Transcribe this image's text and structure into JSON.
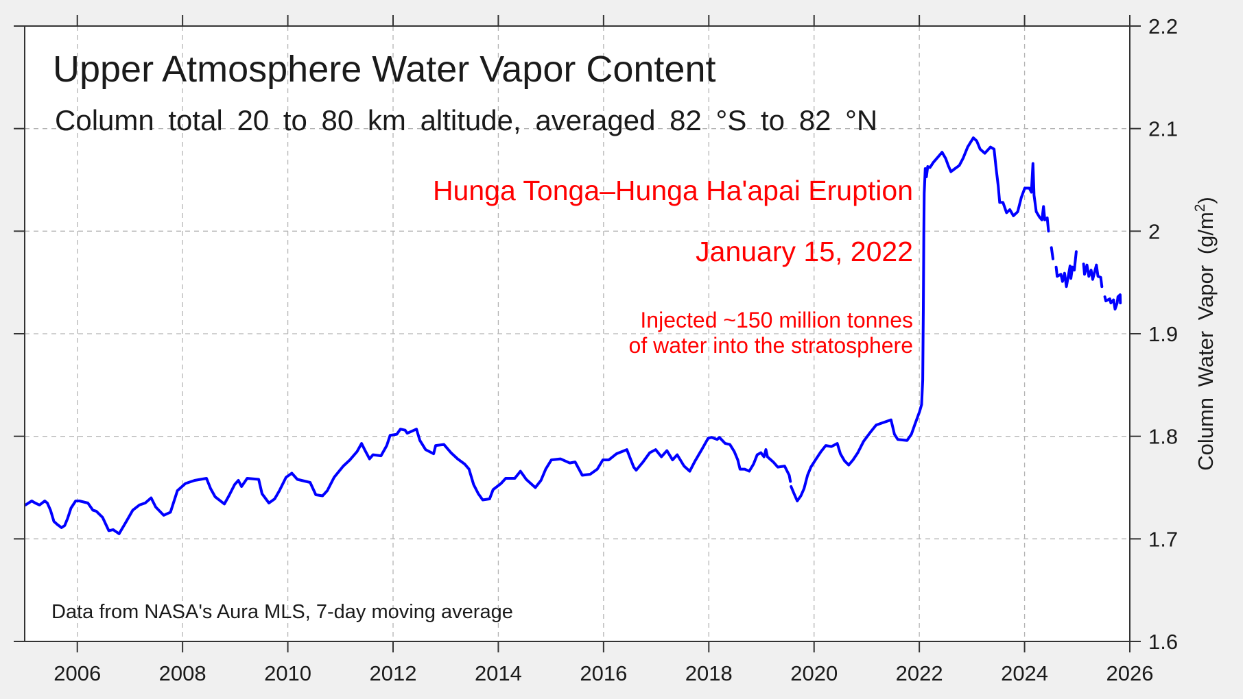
{
  "chart_data": {
    "type": "line",
    "title": "Upper Atmosphere Water Vapor Content",
    "subtitle": "Column total 20 to 80 km altitude, averaged 82 °S to 82 °N",
    "xlabel": "",
    "ylabel": "Column Water Vapor  (g/m",
    "ylabel_superscript": "2",
    "ylabel_close": ")",
    "xlim": [
      2005,
      2026
    ],
    "ylim": [
      1.6,
      2.2
    ],
    "x_ticks": [
      2006,
      2008,
      2010,
      2012,
      2014,
      2016,
      2018,
      2020,
      2022,
      2024,
      2026
    ],
    "x_tick_labels": [
      "2006",
      "2008",
      "2010",
      "2012",
      "2014",
      "2016",
      "2018",
      "2020",
      "2022",
      "2024",
      "2026"
    ],
    "y_ticks": [
      1.6,
      1.7,
      1.8,
      1.9,
      2.0,
      2.1,
      2.2
    ],
    "y_tick_labels": [
      "1.6",
      "1.7",
      "1.8",
      "1.9",
      "2",
      "2.1",
      "2.2"
    ],
    "y_axis_side": "right",
    "grid": true,
    "series_color": "#0000ff",
    "annotation_color": "#ff0000",
    "annotations": {
      "event": "Hunga Tonga–Hunga Ha'apai Eruption",
      "date": "January 15, 2022",
      "detail_line1": "Injected ~150 million tonnes",
      "detail_line2": "of water into the stratosphere"
    },
    "footnote": "Data from NASA's Aura MLS, 7-day moving average",
    "series": [
      {
        "name": "Column Water Vapor (7-day moving average)",
        "segments": [
          [
            [
              2005.013,
              1.733
            ],
            [
              2005.134,
              1.737
            ],
            [
              2005.2,
              1.735
            ],
            [
              2005.282,
              1.733
            ],
            [
              2005.382,
              1.737
            ],
            [
              2005.43,
              1.735
            ],
            [
              2005.49,
              1.728
            ],
            [
              2005.555,
              1.717
            ],
            [
              2005.62,
              1.714
            ],
            [
              2005.699,
              1.711
            ],
            [
              2005.76,
              1.713
            ],
            [
              2005.816,
              1.72
            ],
            [
              2005.88,
              1.73
            ],
            [
              2005.969,
              1.737
            ],
            [
              2006.04,
              1.737
            ],
            [
              2006.12,
              1.736
            ],
            [
              2006.2,
              1.735
            ],
            [
              2006.295,
              1.728
            ],
            [
              2006.36,
              1.727
            ],
            [
              2006.48,
              1.721
            ],
            [
              2006.598,
              1.708
            ],
            [
              2006.68,
              1.709
            ],
            [
              2006.794,
              1.705
            ],
            [
              2006.92,
              1.716
            ],
            [
              2007.055,
              1.728
            ],
            [
              2007.18,
              1.733
            ],
            [
              2007.29,
              1.735
            ],
            [
              2007.403,
              1.74
            ],
            [
              2007.49,
              1.731
            ],
            [
              2007.641,
              1.723
            ],
            [
              2007.77,
              1.726
            ],
            [
              2007.902,
              1.747
            ],
            [
              2008.055,
              1.754
            ],
            [
              2008.23,
              1.757
            ],
            [
              2008.455,
              1.759
            ],
            [
              2008.533,
              1.749
            ],
            [
              2008.62,
              1.741
            ],
            [
              2008.794,
              1.734
            ],
            [
              2008.88,
              1.742
            ],
            [
              2008.99,
              1.753
            ],
            [
              2009.06,
              1.757
            ],
            [
              2009.12,
              1.751
            ],
            [
              2009.228,
              1.759
            ],
            [
              2009.446,
              1.758
            ],
            [
              2009.51,
              1.744
            ],
            [
              2009.641,
              1.735
            ],
            [
              2009.75,
              1.739
            ],
            [
              2009.84,
              1.747
            ],
            [
              2009.967,
              1.76
            ],
            [
              2010.076,
              1.764
            ],
            [
              2010.18,
              1.758
            ],
            [
              2010.424,
              1.755
            ],
            [
              2010.532,
              1.743
            ],
            [
              2010.66,
              1.742
            ],
            [
              2010.75,
              1.747
            ],
            [
              2010.88,
              1.76
            ],
            [
              2011.053,
              1.771
            ],
            [
              2011.18,
              1.777
            ],
            [
              2011.314,
              1.785
            ],
            [
              2011.402,
              1.793
            ],
            [
              2011.47,
              1.786
            ],
            [
              2011.553,
              1.778
            ],
            [
              2011.62,
              1.782
            ],
            [
              2011.77,
              1.781
            ],
            [
              2011.88,
              1.791
            ],
            [
              2011.944,
              1.801
            ],
            [
              2012.07,
              1.802
            ],
            [
              2012.14,
              1.807
            ],
            [
              2012.23,
              1.806
            ],
            [
              2012.27,
              1.803
            ],
            [
              2012.445,
              1.807
            ],
            [
              2012.51,
              1.796
            ],
            [
              2012.618,
              1.787
            ],
            [
              2012.77,
              1.783
            ],
            [
              2012.81,
              1.791
            ],
            [
              2012.966,
              1.792
            ],
            [
              2013.1,
              1.784
            ],
            [
              2013.227,
              1.778
            ],
            [
              2013.36,
              1.773
            ],
            [
              2013.443,
              1.768
            ],
            [
              2013.531,
              1.753
            ],
            [
              2013.62,
              1.744
            ],
            [
              2013.704,
              1.738
            ],
            [
              2013.834,
              1.739
            ],
            [
              2013.9,
              1.748
            ],
            [
              2014.052,
              1.754
            ],
            [
              2014.14,
              1.759
            ],
            [
              2014.313,
              1.759
            ],
            [
              2014.421,
              1.766
            ],
            [
              2014.53,
              1.758
            ],
            [
              2014.704,
              1.75
            ],
            [
              2014.81,
              1.757
            ],
            [
              2014.9,
              1.768
            ],
            [
              2015.008,
              1.777
            ],
            [
              2015.18,
              1.778
            ],
            [
              2015.356,
              1.774
            ],
            [
              2015.46,
              1.775
            ],
            [
              2015.595,
              1.762
            ],
            [
              2015.747,
              1.763
            ],
            [
              2015.88,
              1.768
            ],
            [
              2015.986,
              1.777
            ],
            [
              2016.1,
              1.777
            ],
            [
              2016.247,
              1.783
            ],
            [
              2016.442,
              1.787
            ],
            [
              2016.573,
              1.77
            ],
            [
              2016.62,
              1.767
            ],
            [
              2016.75,
              1.775
            ],
            [
              2016.878,
              1.784
            ],
            [
              2016.99,
              1.787
            ],
            [
              2017.1,
              1.78
            ],
            [
              2017.204,
              1.786
            ],
            [
              2017.31,
              1.777
            ],
            [
              2017.399,
              1.782
            ],
            [
              2017.53,
              1.771
            ],
            [
              2017.638,
              1.766
            ],
            [
              2017.74,
              1.776
            ],
            [
              2017.876,
              1.788
            ],
            [
              2017.986,
              1.798
            ],
            [
              2018.05,
              1.799
            ],
            [
              2018.16,
              1.797
            ],
            [
              2018.2,
              1.799
            ],
            [
              2018.312,
              1.793
            ],
            [
              2018.4,
              1.792
            ],
            [
              2018.485,
              1.785
            ],
            [
              2018.55,
              1.777
            ],
            [
              2018.593,
              1.768
            ],
            [
              2018.68,
              1.768
            ],
            [
              2018.768,
              1.766
            ],
            [
              2018.85,
              1.773
            ],
            [
              2018.919,
              1.782
            ],
            [
              2018.99,
              1.784
            ],
            [
              2019.05,
              1.78
            ],
            [
              2019.085,
              1.787
            ],
            [
              2019.115,
              1.78
            ],
            [
              2019.224,
              1.775
            ],
            [
              2019.31,
              1.77
            ],
            [
              2019.441,
              1.771
            ],
            [
              2019.528,
              1.762
            ],
            [
              2019.55,
              1.756
            ]
          ],
          [
            [
              2019.563,
              1.751
            ],
            [
              2019.62,
              1.744
            ],
            [
              2019.681,
              1.737
            ],
            [
              2019.75,
              1.742
            ],
            [
              2019.81,
              1.749
            ],
            [
              2019.876,
              1.762
            ],
            [
              2019.94,
              1.77
            ],
            [
              2020.027,
              1.777
            ],
            [
              2020.13,
              1.785
            ],
            [
              2020.223,
              1.791
            ],
            [
              2020.33,
              1.79
            ],
            [
              2020.441,
              1.793
            ],
            [
              2020.5,
              1.783
            ],
            [
              2020.58,
              1.776
            ],
            [
              2020.658,
              1.772
            ],
            [
              2020.74,
              1.777
            ],
            [
              2020.832,
              1.784
            ],
            [
              2020.94,
              1.795
            ],
            [
              2021.07,
              1.804
            ],
            [
              2021.18,
              1.811
            ],
            [
              2021.29,
              1.813
            ],
            [
              2021.462,
              1.816
            ],
            [
              2021.527,
              1.802
            ],
            [
              2021.59,
              1.797
            ],
            [
              2021.767,
              1.796
            ],
            [
              2021.85,
              1.802
            ],
            [
              2021.918,
              1.812
            ],
            [
              2022.005,
              1.824
            ],
            [
              2022.044,
              1.831
            ],
            [
              2022.064,
              1.855
            ],
            [
              2022.077,
              1.924
            ],
            [
              2022.085,
              1.997
            ],
            [
              2022.093,
              2.037
            ],
            [
              2022.113,
              2.061
            ],
            [
              2022.135,
              2.053
            ],
            [
              2022.16,
              2.063
            ],
            [
              2022.201,
              2.062
            ],
            [
              2022.266,
              2.067
            ],
            [
              2022.35,
              2.072
            ],
            [
              2022.432,
              2.077
            ],
            [
              2022.5,
              2.071
            ],
            [
              2022.549,
              2.064
            ],
            [
              2022.6,
              2.058
            ],
            [
              2022.679,
              2.061
            ],
            [
              2022.76,
              2.064
            ],
            [
              2022.831,
              2.071
            ],
            [
              2022.918,
              2.082
            ],
            [
              2023.026,
              2.091
            ],
            [
              2023.09,
              2.088
            ],
            [
              2023.156,
              2.08
            ],
            [
              2023.244,
              2.076
            ],
            [
              2023.352,
              2.082
            ],
            [
              2023.42,
              2.08
            ],
            [
              2023.462,
              2.06
            ],
            [
              2023.5,
              2.044
            ],
            [
              2023.527,
              2.028
            ],
            [
              2023.59,
              2.028
            ],
            [
              2023.657,
              2.018
            ],
            [
              2023.72,
              2.021
            ],
            [
              2023.788,
              2.015
            ],
            [
              2023.87,
              2.019
            ],
            [
              2023.939,
              2.033
            ],
            [
              2024.004,
              2.042
            ],
            [
              2024.09,
              2.042
            ],
            [
              2024.13,
              2.038
            ],
            [
              2024.16,
              2.066
            ],
            [
              2024.18,
              2.035
            ],
            [
              2024.222,
              2.019
            ],
            [
              2024.28,
              2.014
            ],
            [
              2024.33,
              2.011
            ],
            [
              2024.36,
              2.024
            ],
            [
              2024.385,
              2.011
            ]
          ],
          [
            [
              2024.43,
              2.013
            ],
            [
              2024.455,
              2.0
            ]
          ],
          [
            [
              2024.51,
              1.984
            ],
            [
              2024.54,
              1.973
            ]
          ],
          [
            [
              2024.6,
              1.965
            ],
            [
              2024.62,
              1.956
            ],
            [
              2024.69,
              1.958
            ],
            [
              2024.721,
              1.951
            ],
            [
              2024.76,
              1.959
            ],
            [
              2024.795,
              1.946
            ],
            [
              2024.865,
              1.966
            ],
            [
              2024.88,
              1.954
            ],
            [
              2024.91,
              1.965
            ],
            [
              2024.945,
              1.962
            ],
            [
              2024.982,
              1.98
            ]
          ],
          [
            [
              2025.121,
              1.968
            ],
            [
              2025.14,
              1.958
            ],
            [
              2025.185,
              1.967
            ],
            [
              2025.222,
              1.956
            ],
            [
              2025.265,
              1.962
            ],
            [
              2025.295,
              1.953
            ],
            [
              2025.365,
              1.967
            ],
            [
              2025.395,
              1.956
            ],
            [
              2025.447,
              1.955
            ],
            [
              2025.47,
              1.946
            ]
          ],
          [
            [
              2025.525,
              1.936
            ],
            [
              2025.545,
              1.932
            ],
            [
              2025.62,
              1.934
            ],
            [
              2025.64,
              1.93
            ],
            [
              2025.691,
              1.933
            ],
            [
              2025.72,
              1.924
            ],
            [
              2025.76,
              1.93
            ],
            [
              2025.775,
              1.936
            ],
            [
              2025.816,
              1.938
            ],
            [
              2025.82,
              1.93
            ]
          ]
        ]
      }
    ]
  }
}
